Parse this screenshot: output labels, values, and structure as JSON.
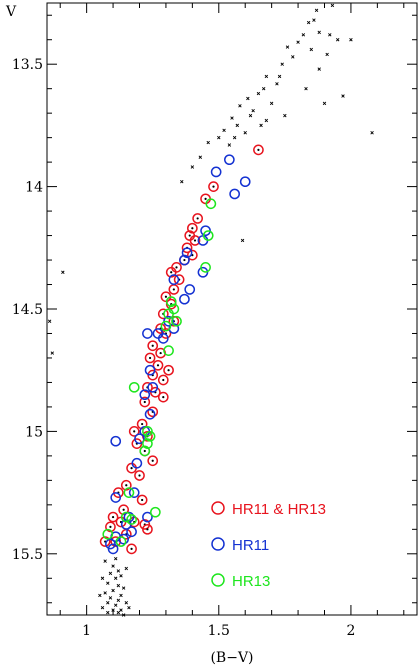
{
  "chart_data": {
    "type": "scatter",
    "xlabel": "(B−V)",
    "ylabel": "V",
    "xlim": [
      0.85,
      2.25
    ],
    "ylim": [
      15.75,
      13.25
    ],
    "y_inverted": true,
    "xticks": [
      {
        "value": 1,
        "label": "1"
      },
      {
        "value": 1.5,
        "label": "1.5"
      },
      {
        "value": 2,
        "label": "2"
      }
    ],
    "yticks": [
      {
        "value": 13.5,
        "label": "13.5"
      },
      {
        "value": 14,
        "label": "14"
      },
      {
        "value": 14.5,
        "label": "14.5"
      },
      {
        "value": 15,
        "label": "15"
      },
      {
        "value": 15.5,
        "label": "15.5"
      }
    ],
    "legend": {
      "placement": "bottom-right",
      "entries": [
        {
          "label": "HR11 & HR13",
          "color": "#e8141e"
        },
        {
          "label": "HR11",
          "color": "#1432d2"
        },
        {
          "label": "HR13",
          "color": "#1ee61e"
        }
      ]
    },
    "series": [
      {
        "name": "HR11 & HR13",
        "marker": "circle-dot",
        "color": "#e8141e",
        "points": [
          [
            1.65,
            13.85
          ],
          [
            1.48,
            14.0
          ],
          [
            1.45,
            14.05
          ],
          [
            1.42,
            14.13
          ],
          [
            1.4,
            14.17
          ],
          [
            1.39,
            14.2
          ],
          [
            1.41,
            14.22
          ],
          [
            1.38,
            14.25
          ],
          [
            1.4,
            14.28
          ],
          [
            1.37,
            14.3
          ],
          [
            1.34,
            14.33
          ],
          [
            1.32,
            14.35
          ],
          [
            1.35,
            14.38
          ],
          [
            1.33,
            14.42
          ],
          [
            1.3,
            14.45
          ],
          [
            1.32,
            14.48
          ],
          [
            1.29,
            14.52
          ],
          [
            1.33,
            14.55
          ],
          [
            1.28,
            14.58
          ],
          [
            1.3,
            14.6
          ],
          [
            1.25,
            14.65
          ],
          [
            1.28,
            14.68
          ],
          [
            1.24,
            14.7
          ],
          [
            1.27,
            14.73
          ],
          [
            1.31,
            14.75
          ],
          [
            1.25,
            14.77
          ],
          [
            1.29,
            14.79
          ],
          [
            1.23,
            14.82
          ],
          [
            1.26,
            14.84
          ],
          [
            1.29,
            14.86
          ],
          [
            1.22,
            14.88
          ],
          [
            1.25,
            14.92
          ],
          [
            1.21,
            14.97
          ],
          [
            1.18,
            15.0
          ],
          [
            1.23,
            15.02
          ],
          [
            1.19,
            15.05
          ],
          [
            1.22,
            15.08
          ],
          [
            1.25,
            15.12
          ],
          [
            1.17,
            15.15
          ],
          [
            1.2,
            15.18
          ],
          [
            1.15,
            15.22
          ],
          [
            1.12,
            15.25
          ],
          [
            1.21,
            15.28
          ],
          [
            1.14,
            15.32
          ],
          [
            1.1,
            15.35
          ],
          [
            1.13,
            15.37
          ],
          [
            1.18,
            15.37
          ],
          [
            1.22,
            15.38
          ],
          [
            1.09,
            15.39
          ],
          [
            1.15,
            15.42
          ],
          [
            1.23,
            15.4
          ],
          [
            1.11,
            15.45
          ],
          [
            1.17,
            15.48
          ],
          [
            1.07,
            15.45
          ]
        ]
      },
      {
        "name": "HR11",
        "marker": "circle",
        "color": "#1432d2",
        "points": [
          [
            1.49,
            13.94
          ],
          [
            1.54,
            13.89
          ],
          [
            1.6,
            13.98
          ],
          [
            1.56,
            14.03
          ],
          [
            1.45,
            14.18
          ],
          [
            1.44,
            14.22
          ],
          [
            1.38,
            14.27
          ],
          [
            1.37,
            14.3
          ],
          [
            1.44,
            14.35
          ],
          [
            1.33,
            14.38
          ],
          [
            1.39,
            14.42
          ],
          [
            1.37,
            14.46
          ],
          [
            1.31,
            14.55
          ],
          [
            1.33,
            14.58
          ],
          [
            1.23,
            14.6
          ],
          [
            1.27,
            14.6
          ],
          [
            1.29,
            14.62
          ],
          [
            1.24,
            14.75
          ],
          [
            1.25,
            14.82
          ],
          [
            1.22,
            14.85
          ],
          [
            1.24,
            14.93
          ],
          [
            1.22,
            15.0
          ],
          [
            1.2,
            15.03
          ],
          [
            1.11,
            15.04
          ],
          [
            1.19,
            15.13
          ],
          [
            1.18,
            15.25
          ],
          [
            1.11,
            15.27
          ],
          [
            1.16,
            15.35
          ],
          [
            1.23,
            15.35
          ],
          [
            1.15,
            15.38
          ],
          [
            1.17,
            15.41
          ],
          [
            1.14,
            15.44
          ],
          [
            1.11,
            15.43
          ],
          [
            1.09,
            15.46
          ],
          [
            1.1,
            15.48
          ]
        ]
      },
      {
        "name": "HR13",
        "marker": "circle",
        "color": "#1ee61e",
        "points": [
          [
            1.47,
            14.07
          ],
          [
            1.46,
            14.2
          ],
          [
            1.45,
            14.33
          ],
          [
            1.32,
            14.47
          ],
          [
            1.33,
            14.5
          ],
          [
            1.31,
            14.52
          ],
          [
            1.34,
            14.55
          ],
          [
            1.3,
            14.57
          ],
          [
            1.31,
            14.67
          ],
          [
            1.18,
            14.82
          ],
          [
            1.23,
            15.0
          ],
          [
            1.24,
            15.02
          ],
          [
            1.23,
            15.05
          ],
          [
            1.22,
            15.08
          ],
          [
            1.16,
            15.25
          ],
          [
            1.15,
            15.35
          ],
          [
            1.17,
            15.36
          ],
          [
            1.26,
            15.33
          ],
          [
            1.13,
            15.45
          ],
          [
            1.08,
            15.42
          ]
        ]
      },
      {
        "name": "",
        "marker": "cross",
        "color": "#000000",
        "points": [
          [
            1.9,
            13.22
          ],
          [
            1.93,
            13.26
          ],
          [
            1.87,
            13.28
          ],
          [
            1.86,
            13.32
          ],
          [
            1.84,
            13.33
          ],
          [
            1.88,
            13.37
          ],
          [
            1.92,
            13.38
          ],
          [
            1.82,
            13.38
          ],
          [
            2.0,
            13.4
          ],
          [
            1.95,
            13.4
          ],
          [
            1.8,
            13.41
          ],
          [
            1.76,
            13.43
          ],
          [
            1.85,
            13.44
          ],
          [
            1.91,
            13.46
          ],
          [
            1.78,
            13.47
          ],
          [
            1.74,
            13.5
          ],
          [
            1.88,
            13.52
          ],
          [
            1.68,
            13.55
          ],
          [
            1.72,
            13.58
          ],
          [
            1.83,
            13.6
          ],
          [
            1.65,
            13.62
          ],
          [
            1.61,
            13.64
          ],
          [
            1.7,
            13.66
          ],
          [
            1.58,
            13.67
          ],
          [
            1.63,
            13.69
          ],
          [
            1.55,
            13.72
          ],
          [
            1.68,
            13.73
          ],
          [
            1.57,
            13.75
          ],
          [
            1.52,
            13.77
          ],
          [
            1.6,
            13.78
          ],
          [
            1.5,
            13.8
          ],
          [
            1.46,
            13.82
          ],
          [
            1.54,
            13.83
          ],
          [
            1.43,
            13.88
          ],
          [
            1.4,
            13.92
          ],
          [
            1.36,
            13.98
          ],
          [
            1.97,
            13.63
          ],
          [
            1.9,
            13.66
          ],
          [
            2.08,
            13.78
          ],
          [
            1.75,
            13.71
          ],
          [
            1.66,
            13.75
          ],
          [
            1.59,
            14.22
          ],
          [
            1.62,
            13.71
          ],
          [
            1.56,
            13.8
          ],
          [
            1.73,
            13.55
          ],
          [
            1.67,
            13.6
          ],
          [
            0.91,
            14.35
          ],
          [
            0.86,
            14.55
          ],
          [
            0.87,
            14.68
          ],
          [
            1.1,
            15.55
          ],
          [
            1.12,
            15.57
          ],
          [
            1.09,
            15.58
          ],
          [
            1.13,
            15.59
          ],
          [
            1.11,
            15.6
          ],
          [
            1.08,
            15.62
          ],
          [
            1.12,
            15.63
          ],
          [
            1.14,
            15.64
          ],
          [
            1.1,
            15.65
          ],
          [
            1.07,
            15.66
          ],
          [
            1.13,
            15.67
          ],
          [
            1.09,
            15.68
          ],
          [
            1.12,
            15.69
          ],
          [
            1.15,
            15.7
          ],
          [
            1.08,
            15.7
          ],
          [
            1.11,
            15.71
          ],
          [
            1.06,
            15.72
          ],
          [
            1.13,
            15.73
          ],
          [
            1.1,
            15.73
          ],
          [
            1.16,
            15.72
          ],
          [
            1.08,
            15.74
          ],
          [
            1.12,
            15.74
          ],
          [
            1.14,
            15.75
          ],
          [
            1.05,
            15.67
          ],
          [
            1.11,
            15.52
          ],
          [
            1.07,
            15.53
          ],
          [
            1.15,
            15.56
          ],
          [
            1.06,
            15.6
          ]
        ]
      }
    ]
  }
}
